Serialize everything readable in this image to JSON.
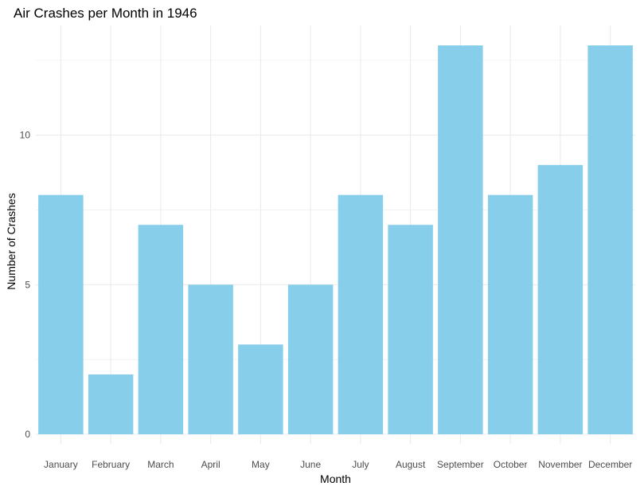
{
  "chart_data": {
    "type": "bar",
    "title": "Air Crashes per Month in 1946",
    "xlabel": "Month",
    "ylabel": "Number of Crashes",
    "categories": [
      "January",
      "February",
      "March",
      "April",
      "May",
      "June",
      "July",
      "August",
      "September",
      "October",
      "November",
      "December"
    ],
    "values": [
      8,
      2,
      7,
      5,
      3,
      5,
      8,
      7,
      13,
      8,
      9,
      13
    ],
    "ylim": [
      0,
      13.65
    ],
    "yticks": [
      0,
      5,
      10
    ],
    "ytick_labels": [
      "0",
      "5",
      "10"
    ],
    "grid": true,
    "legend": "none",
    "colors": {
      "bar": "#87CEEB",
      "grid": "#EBEBEB",
      "text": "#000000",
      "tick_text": "#4D4D4D",
      "background": "#FFFFFF"
    }
  }
}
